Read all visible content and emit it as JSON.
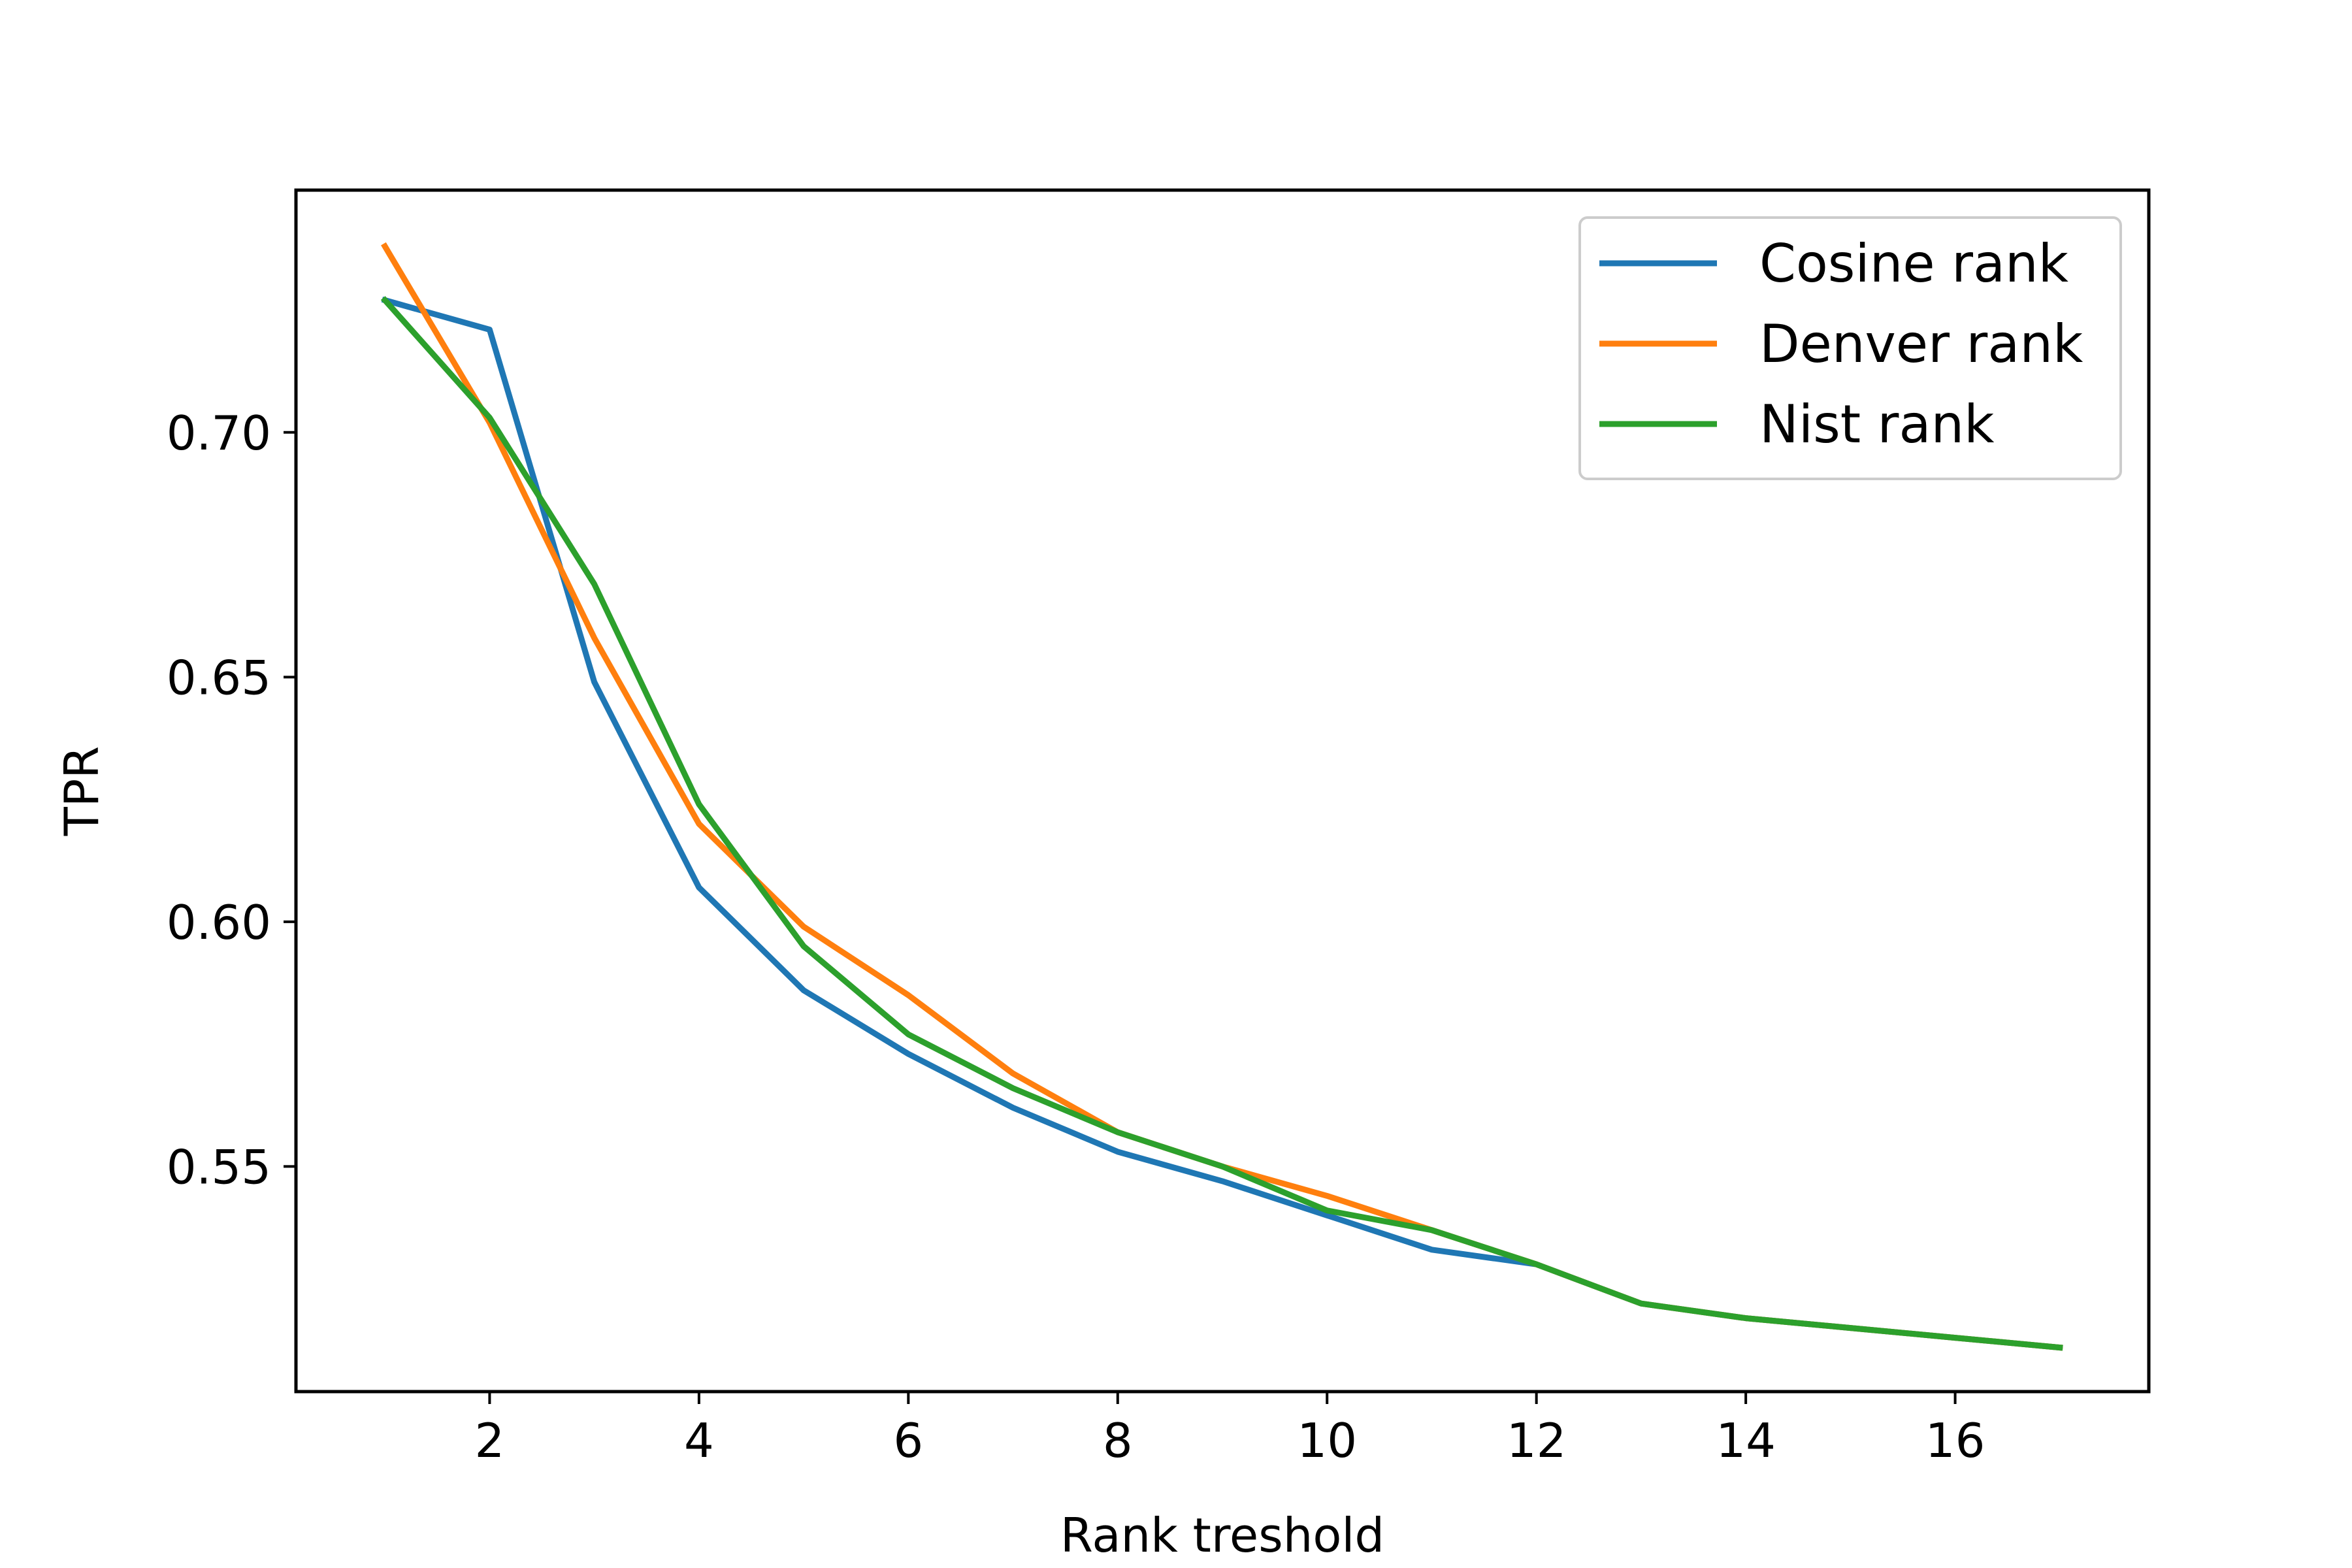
{
  "chart_data": {
    "type": "line",
    "title": "",
    "xlabel": "Rank treshold",
    "ylabel": "TPR",
    "xlim": [
      0.15,
      17.85
    ],
    "ylim": [
      0.504,
      0.7495
    ],
    "xticks": [
      2,
      4,
      6,
      8,
      10,
      12,
      14,
      16
    ],
    "yticks": [
      0.55,
      0.6,
      0.65,
      0.7
    ],
    "ytick_labels": [
      "0.55",
      "0.60",
      "0.65",
      "0.70"
    ],
    "grid": false,
    "legend_position": "top-right",
    "x": [
      1,
      2,
      3,
      4,
      5,
      6,
      7,
      8,
      9,
      10,
      11,
      12,
      13,
      14,
      15,
      16,
      17
    ],
    "series": [
      {
        "name": "Cosine rank",
        "color": "#1f77b4",
        "values": [
          0.727,
          0.721,
          0.649,
          0.607,
          0.586,
          0.573,
          0.562,
          0.553,
          0.547,
          0.54,
          0.533,
          0.53,
          0.522,
          0.519,
          0.517,
          0.515,
          0.513
        ]
      },
      {
        "name": "Denver rank",
        "color": "#ff7f0e",
        "values": [
          0.738,
          0.702,
          0.658,
          0.62,
          0.599,
          0.585,
          0.569,
          0.557,
          0.55,
          0.544,
          0.537,
          0.53,
          0.522,
          0.519,
          0.517,
          0.515,
          0.513
        ]
      },
      {
        "name": "Nist rank",
        "color": "#2ca02c",
        "values": [
          0.727,
          0.703,
          0.669,
          0.624,
          0.595,
          0.577,
          0.566,
          0.557,
          0.55,
          0.541,
          0.537,
          0.53,
          0.522,
          0.519,
          0.517,
          0.515,
          0.513
        ]
      }
    ]
  }
}
